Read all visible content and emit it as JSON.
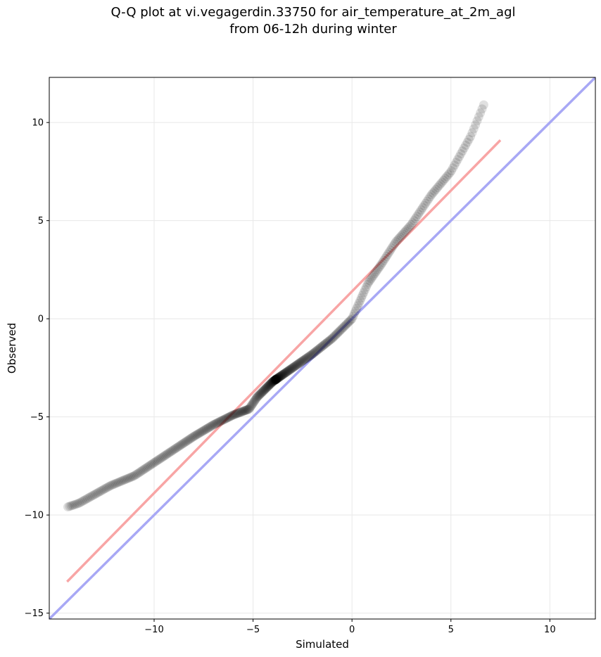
{
  "chart_data": {
    "type": "scatter",
    "title_line1": "Q-Q plot at vi.vegagerdin.33750 for air_temperature_at_2m_agl",
    "title_line2": "from 06-12h during winter",
    "xlabel": "Simulated",
    "ylabel": "Observed",
    "xlim": [
      -15.3,
      12.3
    ],
    "ylim": [
      -15.3,
      12.3
    ],
    "xticks": [
      -10,
      -5,
      0,
      5,
      10
    ],
    "yticks": [
      -15,
      -10,
      -5,
      0,
      5,
      10
    ],
    "xtick_labels": [
      "−10",
      "−5",
      "0",
      "5",
      "10"
    ],
    "ytick_labels": [
      "−15",
      "−10",
      "−5",
      "0",
      "5",
      "10"
    ],
    "grid": true,
    "colors": {
      "points": "#000000",
      "fit_line": "#f8a5a5",
      "identity_line": "#a8a8f5"
    },
    "fit_line": {
      "x": [
        -14.4,
        7.5
      ],
      "y": [
        -13.4,
        9.1
      ]
    },
    "identity_line": {
      "x": [
        -15.3,
        12.3
      ],
      "y": [
        -15.3,
        12.3
      ]
    },
    "quantile_curve": {
      "x": [
        -14.4,
        -13.8,
        -12.2,
        -11.0,
        -9.5,
        -8.0,
        -7.0,
        -6.0,
        -5.2,
        -4.8,
        -4.0,
        -3.0,
        -2.0,
        -1.0,
        0.0,
        0.8,
        1.5,
        2.2,
        3.0,
        4.0,
        5.0,
        6.0,
        6.7
      ],
      "y": [
        -9.6,
        -9.4,
        -8.5,
        -8.0,
        -7.0,
        -6.0,
        -5.4,
        -4.9,
        -4.6,
        -4.0,
        -3.2,
        -2.5,
        -1.8,
        -1.0,
        0.0,
        1.8,
        2.8,
        3.9,
        4.8,
        6.3,
        7.5,
        9.3,
        11.0
      ]
    },
    "point_count": 400
  }
}
